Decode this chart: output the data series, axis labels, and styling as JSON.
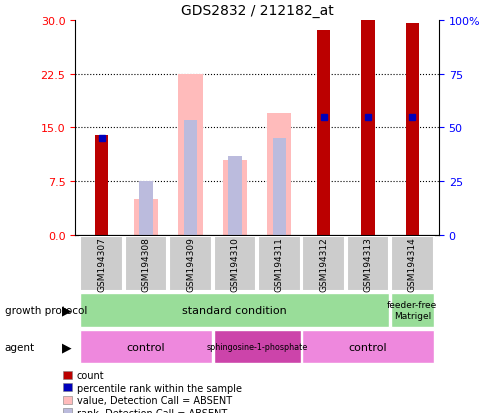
{
  "title": "GDS2832 / 212182_at",
  "samples": [
    "GSM194307",
    "GSM194308",
    "GSM194309",
    "GSM194310",
    "GSM194311",
    "GSM194312",
    "GSM194313",
    "GSM194314"
  ],
  "count_values": [
    14.0,
    0,
    0,
    0,
    0,
    28.5,
    30.0,
    29.5
  ],
  "value_absent": [
    0,
    5.0,
    22.5,
    10.5,
    17.0,
    0,
    0,
    0
  ],
  "rank_absent": [
    0,
    7.5,
    16.0,
    11.0,
    13.5,
    0,
    0,
    0
  ],
  "percentile_rank": [
    13.5,
    0,
    0,
    0,
    0,
    16.5,
    16.5,
    16.5
  ],
  "has_count": [
    true,
    false,
    false,
    false,
    false,
    true,
    true,
    true
  ],
  "has_absent": [
    false,
    true,
    true,
    true,
    true,
    false,
    false,
    false
  ],
  "has_percentile": [
    true,
    false,
    false,
    false,
    false,
    true,
    true,
    true
  ],
  "ylim": [
    0,
    30
  ],
  "yticks_left": [
    0,
    7.5,
    15,
    22.5,
    30
  ],
  "yticks_right_vals": [
    0,
    25,
    50,
    75,
    100
  ],
  "yticks_right_labels": [
    "0",
    "25",
    "50",
    "75",
    "100%"
  ],
  "count_color": "#bb0000",
  "absent_value_color": "#ffbbbb",
  "absent_rank_color": "#bbbbdd",
  "percentile_color": "#0000bb",
  "sample_box_color": "#cccccc",
  "gp_color": "#99dd99",
  "agent_light_color": "#ee88dd",
  "agent_dark_color": "#cc44aa",
  "legend_items": [
    {
      "label": "count",
      "color": "#bb0000"
    },
    {
      "label": "percentile rank within the sample",
      "color": "#0000bb"
    },
    {
      "label": "value, Detection Call = ABSENT",
      "color": "#ffbbbb"
    },
    {
      "label": "rank, Detection Call = ABSENT",
      "color": "#bbbbdd"
    }
  ]
}
